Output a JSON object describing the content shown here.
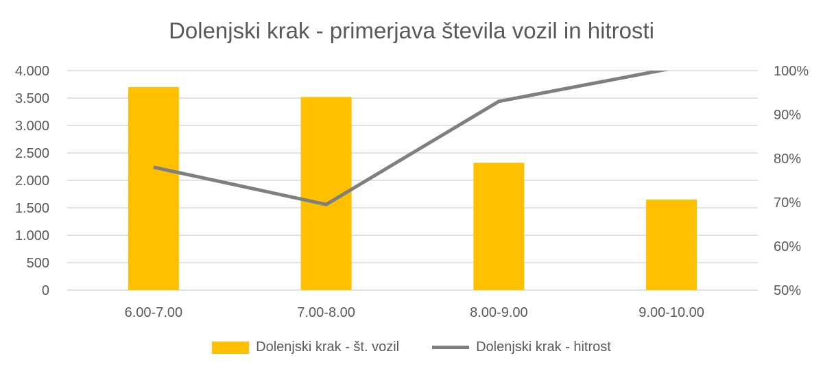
{
  "chart_data": {
    "type": "bar",
    "title": "Dolenjski krak - primerjava števila vozil in hitrosti",
    "categories": [
      "6.00-7.00",
      "7.00-8.00",
      "8.00-9.00",
      "9.00-10.00"
    ],
    "series": [
      {
        "name": "Dolenjski krak - št. vozil",
        "type": "bar",
        "axis": "left",
        "color": "#ffc000",
        "values": [
          3700,
          3520,
          2320,
          1650
        ]
      },
      {
        "name": "Dolenjski krak - hitrost",
        "type": "line",
        "axis": "right",
        "color": "#7f7f7f",
        "values": [
          0.78,
          0.695,
          0.93,
          1.005
        ]
      }
    ],
    "y_left": {
      "ylim": [
        0,
        4000
      ],
      "ticks": [
        0,
        500,
        1000,
        1500,
        2000,
        2500,
        3000,
        3500,
        4000
      ],
      "tick_labels": [
        "0",
        "500",
        "1.000",
        "1.500",
        "2.000",
        "2.500",
        "3.000",
        "3.500",
        "4.000"
      ]
    },
    "y_right": {
      "ylim": [
        0.5,
        1.0
      ],
      "ticks": [
        0.5,
        0.6,
        0.7,
        0.8,
        0.9,
        1.0
      ],
      "tick_labels": [
        "50%",
        "60%",
        "70%",
        "80%",
        "90%",
        "100%"
      ]
    },
    "grid": true,
    "legend_position": "bottom"
  }
}
